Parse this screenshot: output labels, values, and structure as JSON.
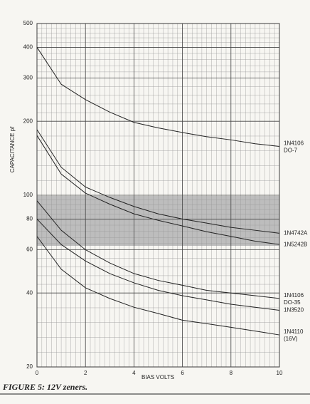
{
  "chart_data": {
    "type": "line",
    "caption": "FIGURE 5: 12V zeners.",
    "xlabel": "BIAS VOLTS",
    "ylabel": "CAPACITANCE pf",
    "log_y": true,
    "grid": true,
    "x": [
      0,
      1,
      2,
      3,
      4,
      5,
      6,
      7,
      8,
      9,
      10
    ],
    "xlim": [
      0,
      10
    ],
    "xticks": [
      0,
      2,
      4,
      6,
      8,
      10
    ],
    "ylim": [
      20,
      500
    ],
    "yticks": [
      20,
      40,
      60,
      80,
      100,
      200,
      300,
      400,
      500
    ],
    "series": [
      {
        "name": "1N4106 DO-7",
        "color": "#222222",
        "values": [
          400,
          283,
          245,
          218,
          198,
          188,
          180,
          173,
          168,
          162,
          158
        ]
      },
      {
        "name": "1N4742A",
        "color": "#222222",
        "values": [
          185,
          130,
          108,
          98,
          90,
          84,
          80,
          77,
          74,
          72,
          70
        ]
      },
      {
        "name": "1N5242B",
        "color": "#222222",
        "values": [
          175,
          122,
          102,
          92,
          84,
          79,
          75,
          71,
          68,
          65,
          63
        ]
      },
      {
        "name": "1N4106 DO-35",
        "color": "#222222",
        "values": [
          95,
          72,
          60,
          53,
          48,
          45,
          43,
          41,
          40,
          39,
          38
        ]
      },
      {
        "name": "1N3520",
        "color": "#222222",
        "values": [
          80,
          63,
          54,
          48,
          44,
          41,
          39,
          37.5,
          36,
          35,
          34
        ]
      },
      {
        "name": "1N4110 (16V)",
        "color": "#222222",
        "values": [
          68,
          50,
          42,
          38,
          35,
          33,
          31,
          30,
          29,
          28,
          27
        ]
      }
    ]
  }
}
